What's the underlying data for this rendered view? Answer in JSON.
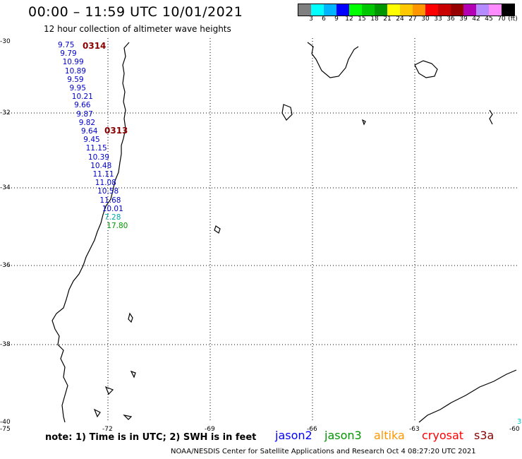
{
  "header": {
    "title": "00:00 – 11:59 UTC 10/01/2021",
    "subtitle": "12 hour collection of altimeter wave heights"
  },
  "color_scale": {
    "unit": "(ft)",
    "colors": [
      "#7f7f7f",
      "#00ffff",
      "#00b4ff",
      "#0000ff",
      "#00ff00",
      "#00c800",
      "#009600",
      "#ffff00",
      "#ffc800",
      "#ff9600",
      "#ff0000",
      "#c80000",
      "#960000",
      "#b400b4",
      "#b48cff",
      "#ff8cff",
      "#000000"
    ],
    "labels": [
      "3",
      "6",
      "9",
      "12",
      "15",
      "18",
      "21",
      "24",
      "27",
      "30",
      "33",
      "36",
      "39",
      "42",
      "45",
      "70"
    ]
  },
  "axes": {
    "y_ticks": [
      "-30",
      "-32",
      "-34",
      "-36",
      "-38",
      "-40"
    ],
    "x_ticks": [
      "-75",
      "-72",
      "-69",
      "-66",
      "-63",
      "-60"
    ]
  },
  "pass_labels": [
    "0314",
    "0313"
  ],
  "observations": [
    {
      "value": "9.75",
      "color": "#0000cc"
    },
    {
      "value": "9.79",
      "color": "#0000cc"
    },
    {
      "value": "10.99",
      "color": "#0000cc"
    },
    {
      "value": "10.89",
      "color": "#0000cc"
    },
    {
      "value": "9.59",
      "color": "#0000cc"
    },
    {
      "value": "9.95",
      "color": "#0000cc"
    },
    {
      "value": "10.21",
      "color": "#0000cc"
    },
    {
      "value": "9.66",
      "color": "#0000cc"
    },
    {
      "value": "9.87",
      "color": "#0000cc"
    },
    {
      "value": "9.82",
      "color": "#0000cc"
    },
    {
      "value": "9.64",
      "color": "#0000cc"
    },
    {
      "value": "9.45",
      "color": "#0000cc"
    },
    {
      "value": "11.15",
      "color": "#0000cc"
    },
    {
      "value": "10.39",
      "color": "#0000cc"
    },
    {
      "value": "10.48",
      "color": "#0000cc"
    },
    {
      "value": "11.11",
      "color": "#0000cc"
    },
    {
      "value": "11.08",
      "color": "#0000cc"
    },
    {
      "value": "10.58",
      "color": "#0000cc"
    },
    {
      "value": "11.68",
      "color": "#0000cc"
    },
    {
      "value": "10.01",
      "color": "#0000cc"
    },
    {
      "value": "7.28",
      "color": "#00aaaa"
    },
    {
      "value": "17.80",
      "color": "#009600"
    }
  ],
  "edge_value": "3",
  "legend": {
    "note": "note: 1) Time is in UTC; 2) SWH is in feet",
    "satellites": [
      {
        "name": "jason2",
        "color": "#0000ff"
      },
      {
        "name": "jason3",
        "color": "#009600"
      },
      {
        "name": "altika",
        "color": "#ff9600"
      },
      {
        "name": "cryosat",
        "color": "#ff0000"
      },
      {
        "name": "s3a",
        "color": "#8b0000"
      }
    ]
  },
  "footer": "NOAA/NESDIS Center for Satellite Applications and Research   Oct  4 08:27:20 UTC 2021"
}
